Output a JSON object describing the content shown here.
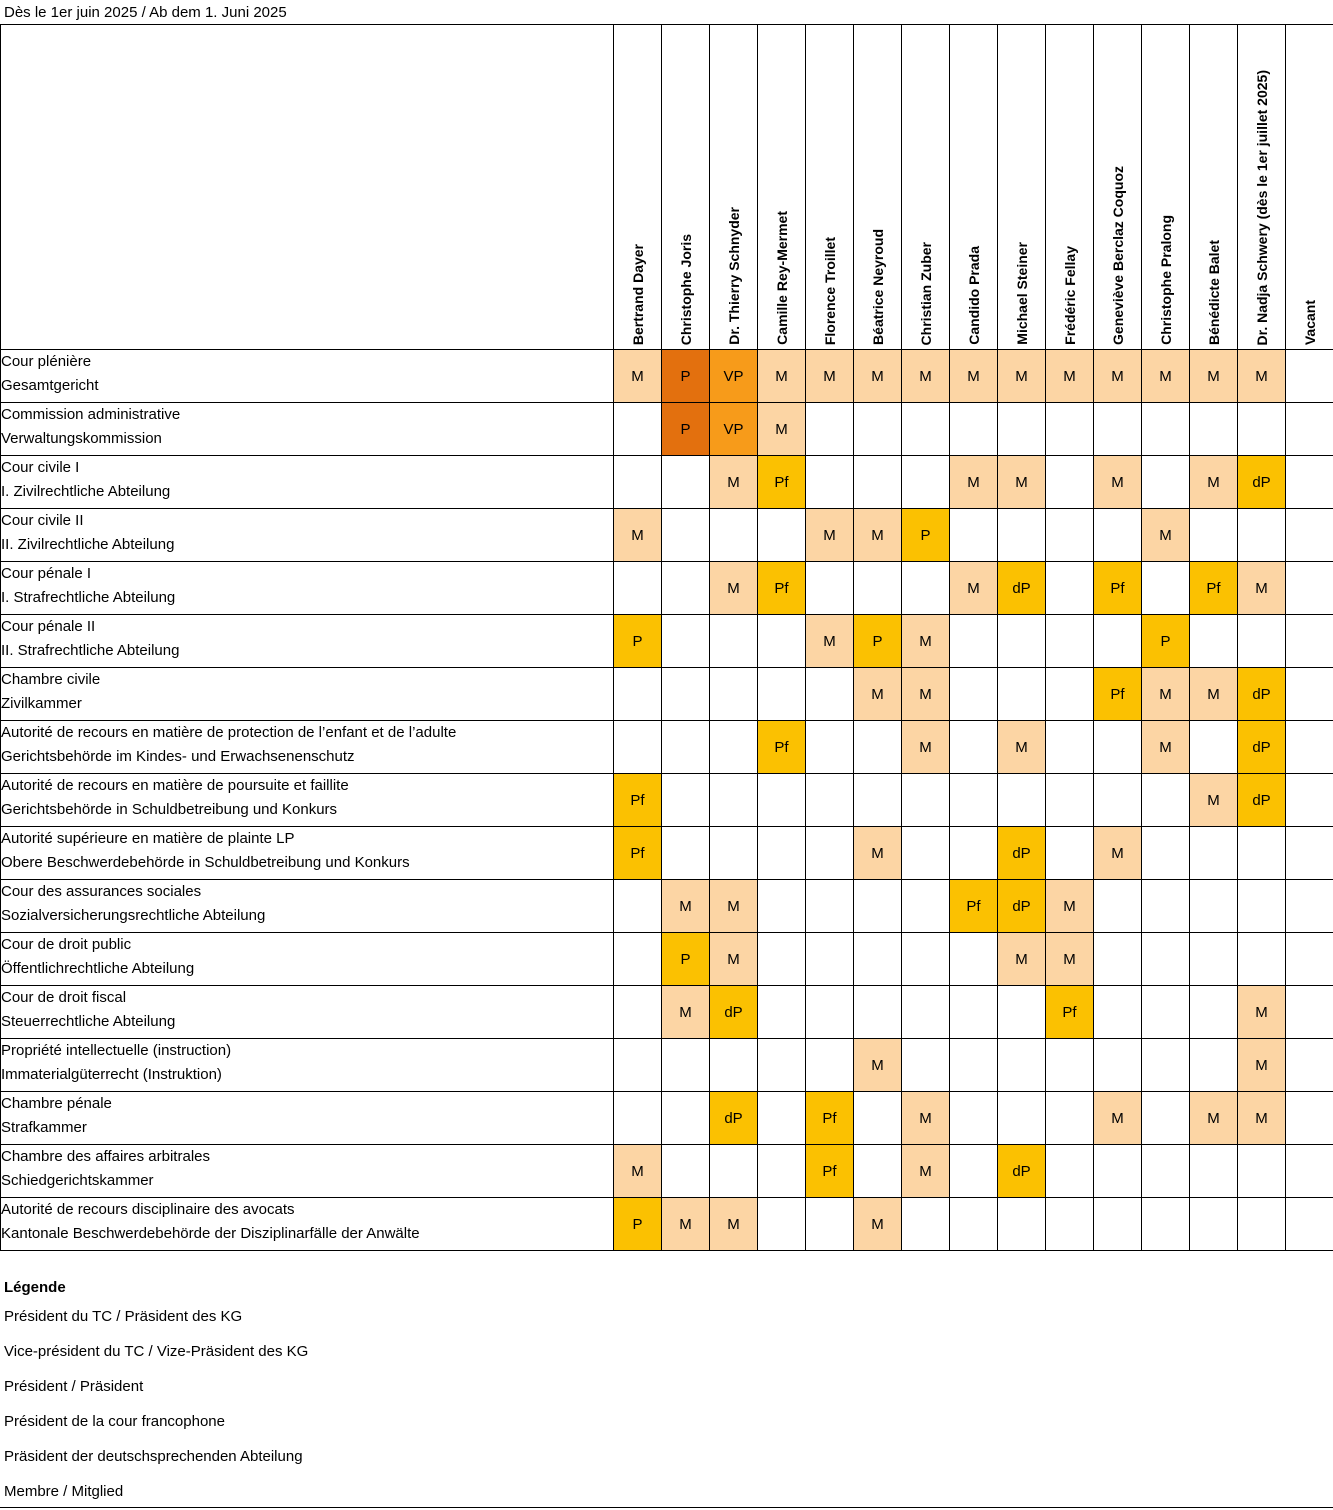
{
  "header": {
    "title": "Dès le 1er juin 2025 / Ab dem 1. Juni 2025"
  },
  "judges": [
    "Bertrand Dayer",
    "Christophe Joris",
    "Dr. Thierry Schnyder",
    "Camille Rey-Mermet",
    "Florence Troillet",
    "Béatrice Neyroud",
    "Christian Zuber",
    "Candido Prada",
    "Michael Steiner",
    "Frédéric Fellay",
    "Geneviève Berclaz Coquoz",
    "Christophe Pralong",
    "Bénédicte Balet",
    "Dr. Nadja Schwery (dès le 1er juillet 2025)",
    "Vacant"
  ],
  "colors": {
    "M": "#fcd5a4",
    "Pf": "#fbc101",
    "dP": "#fbc101",
    "P": "#fbc101",
    "VP": "#f79b1a",
    "P-court": "#e3700e"
  },
  "rows": [
    {
      "fr": "Cour plénière",
      "de": "Gesamtgericht",
      "cells": [
        "M",
        "P",
        "VP",
        "M",
        "M",
        "M",
        "M",
        "M",
        "M",
        "M",
        "M",
        "M",
        "M",
        "M",
        ""
      ]
    },
    {
      "fr": "Commission administrative",
      "de": "Verwaltungskommission",
      "cells": [
        "",
        "P",
        "VP",
        "M",
        "",
        "",
        "",
        "",
        "",
        "",
        "",
        "",
        "",
        "",
        ""
      ]
    },
    {
      "fr": "Cour civile I",
      "de": "I. Zivilrechtliche Abteilung",
      "cells": [
        "",
        "",
        "M",
        "Pf",
        "",
        "",
        "",
        "M",
        "M",
        "",
        "M",
        "",
        "M",
        "dP",
        ""
      ]
    },
    {
      "fr": "Cour civile II",
      "de": "II. Zivilrechtliche Abteilung",
      "cells": [
        "M",
        "",
        "",
        "",
        "M",
        "M",
        "P",
        "",
        "",
        "",
        "",
        "M",
        "",
        "",
        ""
      ]
    },
    {
      "fr": "Cour pénale I",
      "de": "I. Strafrechtliche Abteilung",
      "cells": [
        "",
        "",
        "M",
        "Pf",
        "",
        "",
        "",
        "M",
        "dP",
        "",
        "Pf",
        "",
        "Pf",
        "M",
        ""
      ]
    },
    {
      "fr": "Cour pénale II",
      "de": "II. Strafrechtliche Abteilung",
      "cells": [
        "P",
        "",
        "",
        "",
        "M",
        "P",
        "M",
        "",
        "",
        "",
        "",
        "P",
        "",
        "",
        ""
      ]
    },
    {
      "fr": "Chambre civile",
      "de": "Zivilkammer",
      "cells": [
        "",
        "",
        "",
        "",
        "",
        "M",
        "M",
        "",
        "",
        "",
        "Pf",
        "M",
        "M",
        "dP",
        ""
      ]
    },
    {
      "fr": "Autorité de recours en matière de protection de l’enfant et de l’adulte",
      "de": "Gerichtsbehörde im Kindes- und Erwachsenenschutz",
      "cells": [
        "",
        "",
        "",
        "Pf",
        "",
        "",
        "M",
        "",
        "M",
        "",
        "",
        "M",
        "",
        "dP",
        ""
      ]
    },
    {
      "fr": "Autorité de recours en matière de poursuite et faillite",
      "de": "Gerichtsbehörde in Schuldbetreibung und Konkurs",
      "cells": [
        "Pf",
        "",
        "",
        "",
        "",
        "",
        "",
        "",
        "",
        "",
        "",
        "",
        "M",
        "dP",
        ""
      ]
    },
    {
      "fr": "Autorité supérieure en matière de plainte LP",
      "de": "Obere Beschwerdebehörde in Schuldbetreibung und Konkurs",
      "cells": [
        "Pf",
        "",
        "",
        "",
        "",
        "M",
        "",
        "",
        "dP",
        "",
        "M",
        "",
        "",
        "",
        ""
      ]
    },
    {
      "fr": "Cour des assurances sociales",
      "de": "Sozialversicherungsrechtliche Abteilung",
      "cells": [
        "",
        "M",
        "M",
        "",
        "",
        "",
        "",
        "Pf",
        "dP",
        "M",
        "",
        "",
        "",
        "",
        ""
      ]
    },
    {
      "fr": "Cour de droit public",
      "de": "Öffentlichrechtliche Abteilung",
      "cells": [
        "",
        "P",
        "M",
        "",
        "",
        "",
        "",
        "",
        "M",
        "M",
        "",
        "",
        "",
        "",
        ""
      ]
    },
    {
      "fr": "Cour de droit fiscal",
      "de": "Steuerrechtliche Abteilung",
      "cells": [
        "",
        "M",
        "dP",
        "",
        "",
        "",
        "",
        "",
        "",
        "Pf",
        "",
        "",
        "",
        "M",
        ""
      ]
    },
    {
      "fr": "Propriété intellectuelle (instruction)",
      "de": "Immaterialgüterrecht (Instruktion)",
      "cells": [
        "",
        "",
        "",
        "",
        "",
        "M",
        "",
        "",
        "",
        "",
        "",
        "",
        "",
        "M",
        ""
      ]
    },
    {
      "fr": "Chambre pénale",
      "de": "Strafkammer",
      "cells": [
        "",
        "",
        "dP",
        "",
        "Pf",
        "",
        "M",
        "",
        "",
        "",
        "M",
        "",
        "M",
        "M",
        ""
      ]
    },
    {
      "fr": "Chambre des affaires arbitrales",
      "de": "Schiedgerichtskammer",
      "cells": [
        "M",
        "",
        "",
        "",
        "Pf",
        "",
        "M",
        "",
        "dP",
        "",
        "",
        "",
        "",
        "",
        ""
      ]
    },
    {
      "fr": "Autorité de recours disciplinaire des avocats",
      "de": "Kantonale Beschwerdebehörde der Disziplinarfälle der Anwälte",
      "cells": [
        "P",
        "M",
        "M",
        "",
        "",
        "M",
        "",
        "",
        "",
        "",
        "",
        "",
        "",
        "",
        ""
      ]
    }
  ],
  "legend": {
    "title": "Légende",
    "items": [
      "Président du TC / Präsident des KG",
      "Vice-président du TC / Vize-Präsident des KG",
      "Président / Präsident",
      "Président de la cour francophone",
      "Präsident der deutschsprechenden Abteilung",
      "Membre / Mitglied"
    ]
  }
}
